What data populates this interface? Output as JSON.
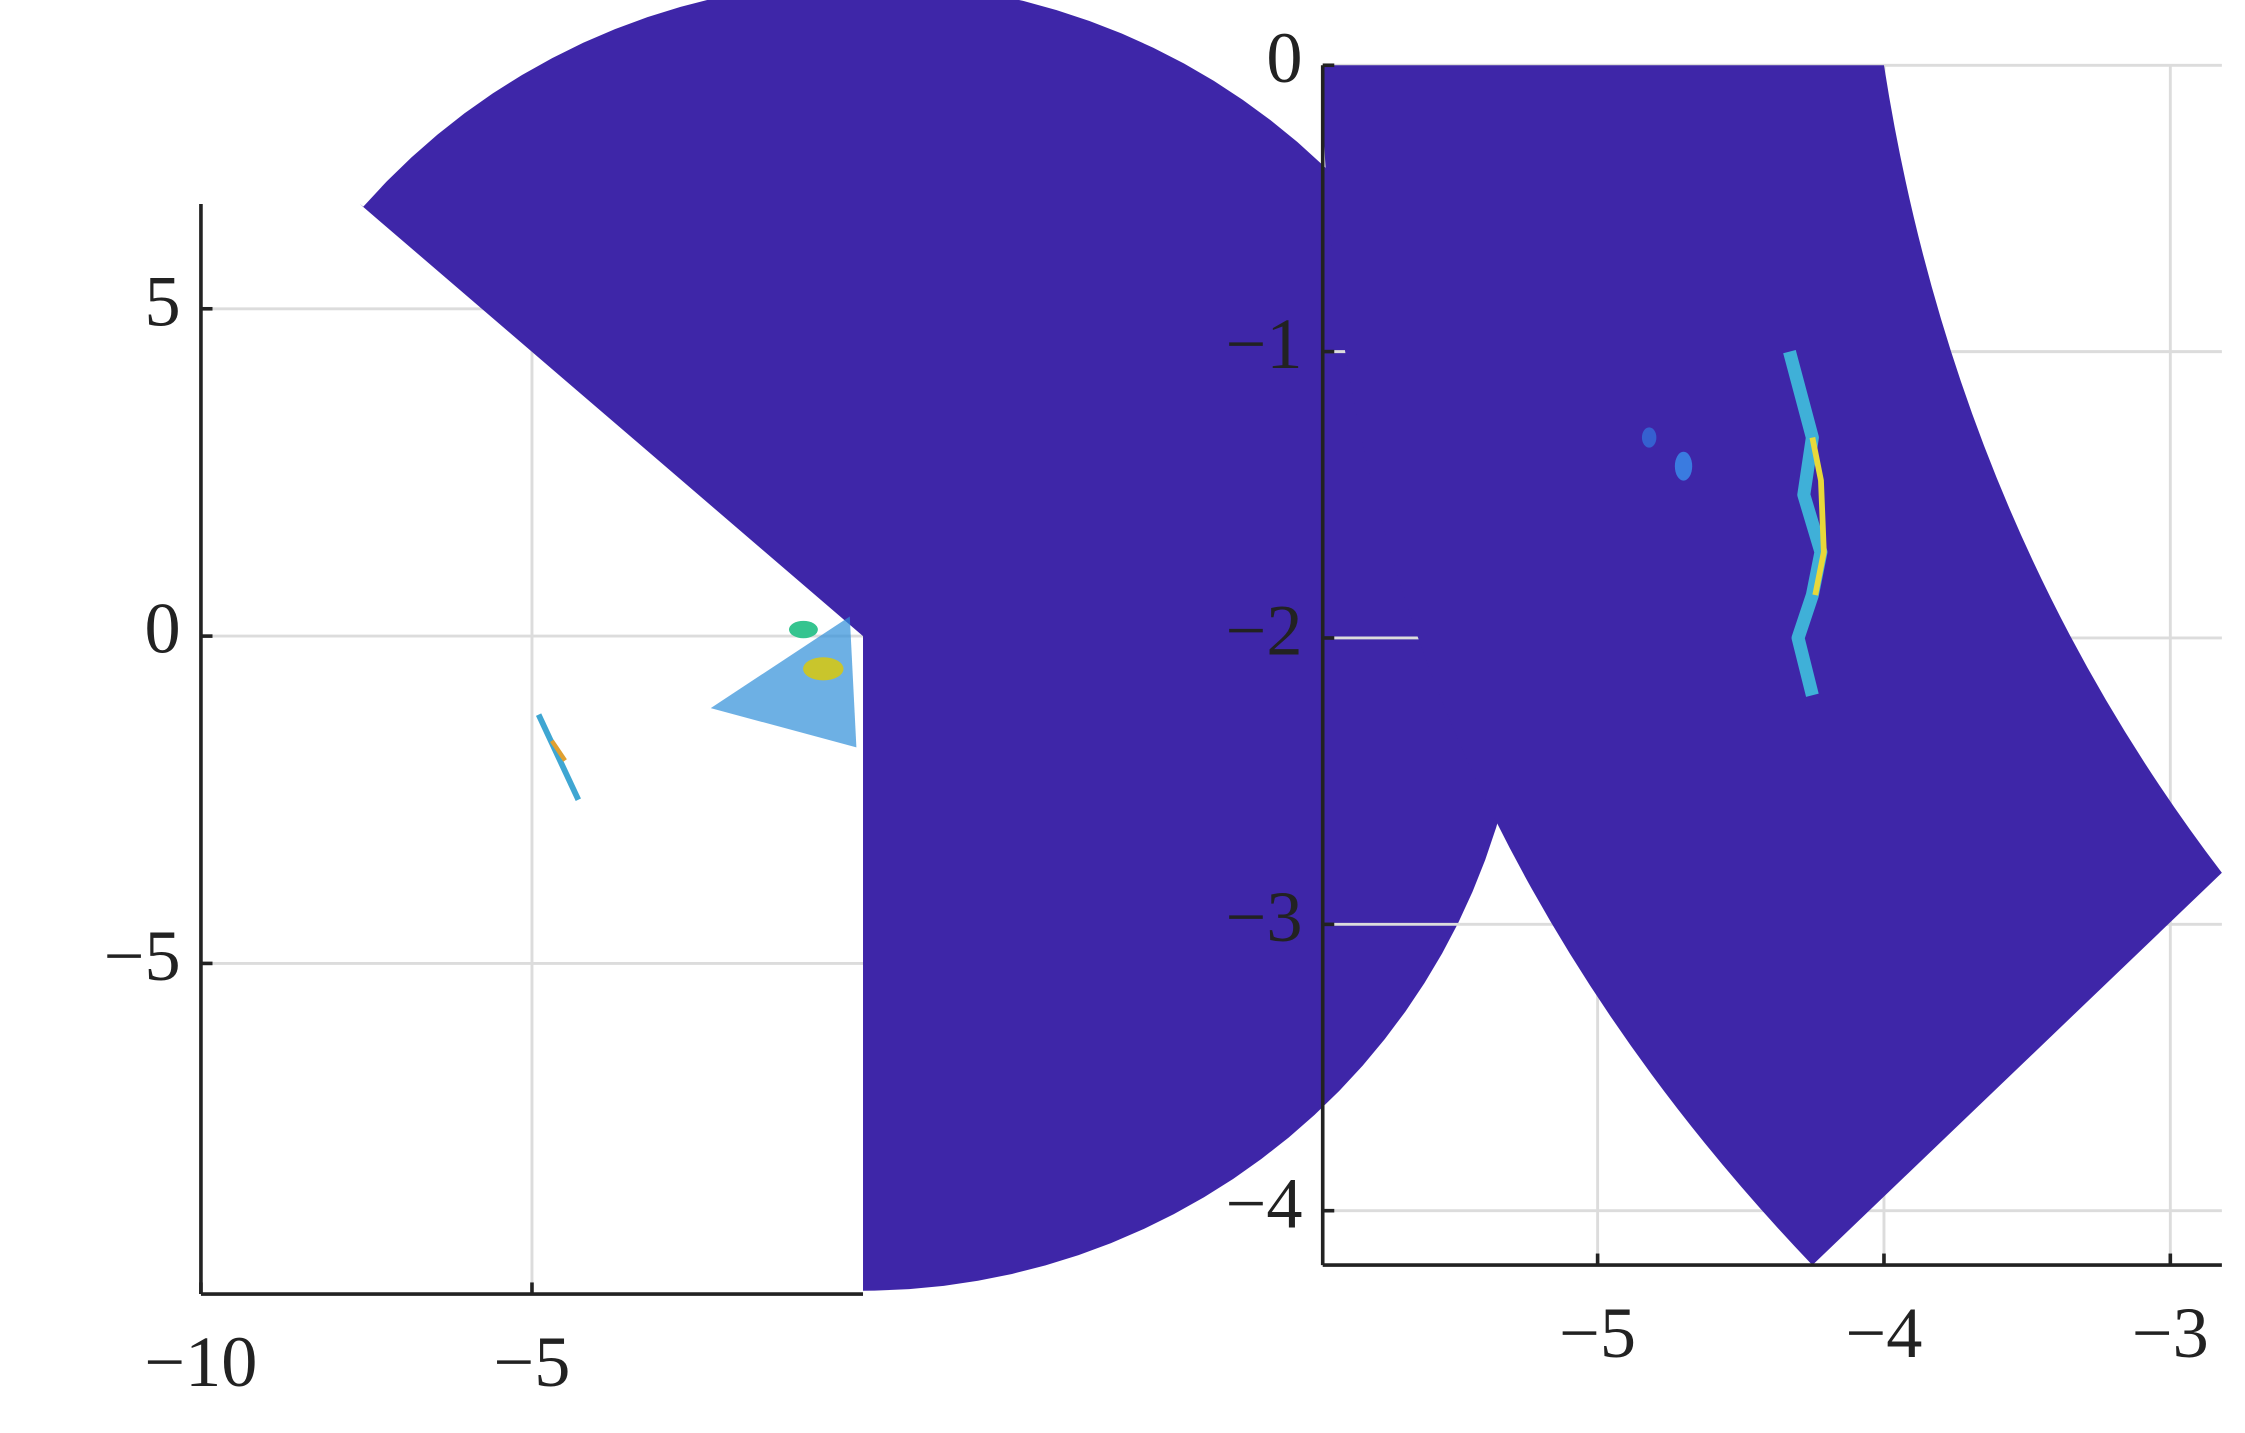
{
  "chart_data": [
    {
      "type": "heatmap",
      "color": "#3e26a8",
      "grid": true,
      "xlim": [
        -10,
        0
      ],
      "ylim": [
        -10.05,
        6.6
      ],
      "xticks": [
        {
          "value": -10,
          "label": "−10"
        },
        {
          "value": -5,
          "label": "−5"
        }
      ],
      "yticks": [
        5,
        0,
        {
          "value": -5,
          "label": "−5"
        }
      ]
    },
    {
      "type": "heatmap",
      "color": "#3e26a8",
      "grid": true,
      "xlim": [
        -5.96,
        -2.82
      ],
      "ylim": [
        -4.19,
        0
      ],
      "xticks": [
        {
          "value": -5,
          "label": "−5"
        },
        {
          "value": -4,
          "label": "−4"
        },
        {
          "value": -3,
          "label": "−3"
        }
      ],
      "yticks": [
        0,
        {
          "value": -1,
          "label": "−1"
        },
        {
          "value": -2,
          "label": "−2"
        },
        {
          "value": -3,
          "label": "−3"
        },
        {
          "value": -4,
          "label": "−4"
        }
      ]
    }
  ]
}
